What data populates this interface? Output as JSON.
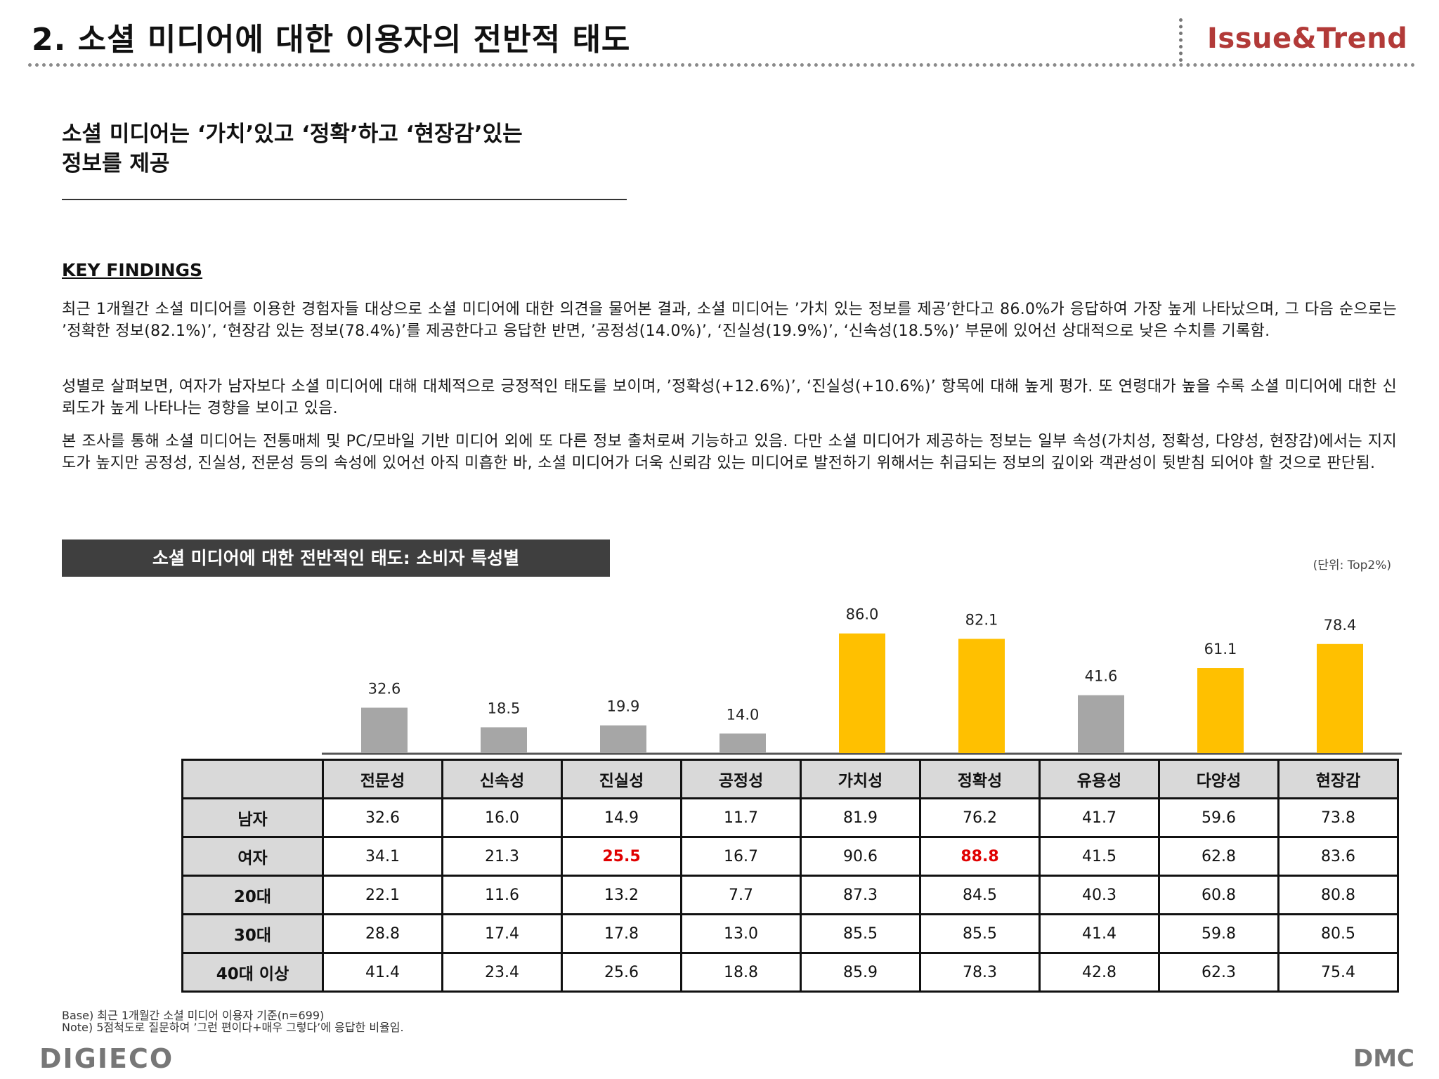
{
  "header": {
    "title": "2. 소셜 미디어에 대한 이용자의 전반적 태도",
    "brand": "Issue&Trend"
  },
  "subtitle": {
    "line1": "소셜 미디어는 ‘가치’있고 ‘정확’하고 ‘현장감’있는",
    "line2": "정보를 제공"
  },
  "key_findings": {
    "heading": "KEY FINDINGS",
    "paragraphs": [
      "최근 1개월간 소셜 미디어를 이용한 경험자들 대상으로 소셜 미디어에 대한 의견을 물어본 결과, 소셜 미디어는 ’가치 있는 정보를 제공’한다고 86.0%가 응답하여 가장 높게 나타났으며, 그 다음 순으로는 ’정확한 정보(82.1%)’, ‘현장감 있는 정보(78.4%)’를 제공한다고 응답한 반면, ’공정성(14.0%)’, ‘진실성(19.9%)’, ‘신속성(18.5%)’ 부문에 있어선 상대적으로 낮은 수치를 기록함.",
      "성별로 살펴보면, 여자가 남자보다 소셜 미디어에 대해 대체적으로 긍정적인 태도를 보이며, ’정확성(+12.6%)’, ‘진실성(+10.6%)’ 항목에 대해 높게 평가. 또 연령대가 높을 수록 소셜 미디어에 대한 신뢰도가 높게 나타나는 경향을 보이고 있음.",
      "본 조사를 통해 소셜 미디어는 전통매체 및 PC/모바일 기반 미디어 외에 또 다른 정보 출처로써 기능하고 있음. 다만 소셜 미디어가 제공하는 정보는 일부 속성(가치성, 정확성, 다양성, 현장감)에서는 지지도가 높지만 공정성, 진실성, 전문성 등의 속성에 있어선 아직 미흡한 바, 소셜 미디어가 더욱 신뢰감 있는 미디어로 발전하기 위해서는 취급되는 정보의 깊이와 객관성이 뒷받침 되어야 할 것으로 판단됨."
    ]
  },
  "chart_data": {
    "type": "bar",
    "title": "소셜 미디어에 대한 전반적인 태도: 소비자 특성별",
    "unit_label": "(단위:  Top2%)",
    "categories": [
      "전문성",
      "신속성",
      "진실성",
      "공정성",
      "가치성",
      "정확성",
      "유용성",
      "다양성",
      "현장감"
    ],
    "values": [
      32.6,
      18.5,
      19.9,
      14.0,
      86.0,
      82.1,
      41.6,
      61.1,
      78.4
    ],
    "value_labels": [
      "32.6",
      "18.5",
      "19.9",
      "14.0",
      "86.0",
      "82.1",
      "41.6",
      "61.1",
      "78.4"
    ],
    "highlighted": [
      false,
      false,
      false,
      false,
      true,
      true,
      false,
      true,
      true
    ],
    "colors": {
      "normal": "#a6a6a6",
      "highlight": "#ffc000",
      "axis": "#555555"
    },
    "ylim": [
      0,
      100
    ],
    "xlabel": "",
    "ylabel": "",
    "grid": false,
    "legend": "none"
  },
  "table": {
    "rows": [
      {
        "label": "남자",
        "values": [
          "32.6",
          "16.0",
          "14.9",
          "11.7",
          "81.9",
          "76.2",
          "41.7",
          "59.6",
          "73.8"
        ]
      },
      {
        "label": "여자",
        "values": [
          "34.1",
          "21.3",
          "25.5",
          "16.7",
          "90.6",
          "88.8",
          "41.5",
          "62.8",
          "83.6"
        ],
        "highlight_cols": [
          2,
          5
        ]
      },
      {
        "label": "20대",
        "values": [
          "22.1",
          "11.6",
          "13.2",
          "7.7",
          "87.3",
          "84.5",
          "40.3",
          "60.8",
          "80.8"
        ]
      },
      {
        "label": "30대",
        "values": [
          "28.8",
          "17.4",
          "17.8",
          "13.0",
          "85.5",
          "85.5",
          "41.4",
          "59.8",
          "80.5"
        ]
      },
      {
        "label": "40대 이상",
        "values": [
          "41.4",
          "23.4",
          "25.6",
          "18.8",
          "85.9",
          "78.3",
          "42.8",
          "62.3",
          "75.4"
        ]
      }
    ],
    "highlight_color": "#e00000"
  },
  "notes": {
    "base": "Base)    최근 1개월간 소셜 미디어 이용자 기준(n=699)",
    "note": "Note)    5점척도로 질문하여 ’그런 편이다+매우 그렇다’에 응답한 비율임."
  },
  "footer": {
    "left_logo": "DIGIECO",
    "right_logo": "DMC"
  }
}
